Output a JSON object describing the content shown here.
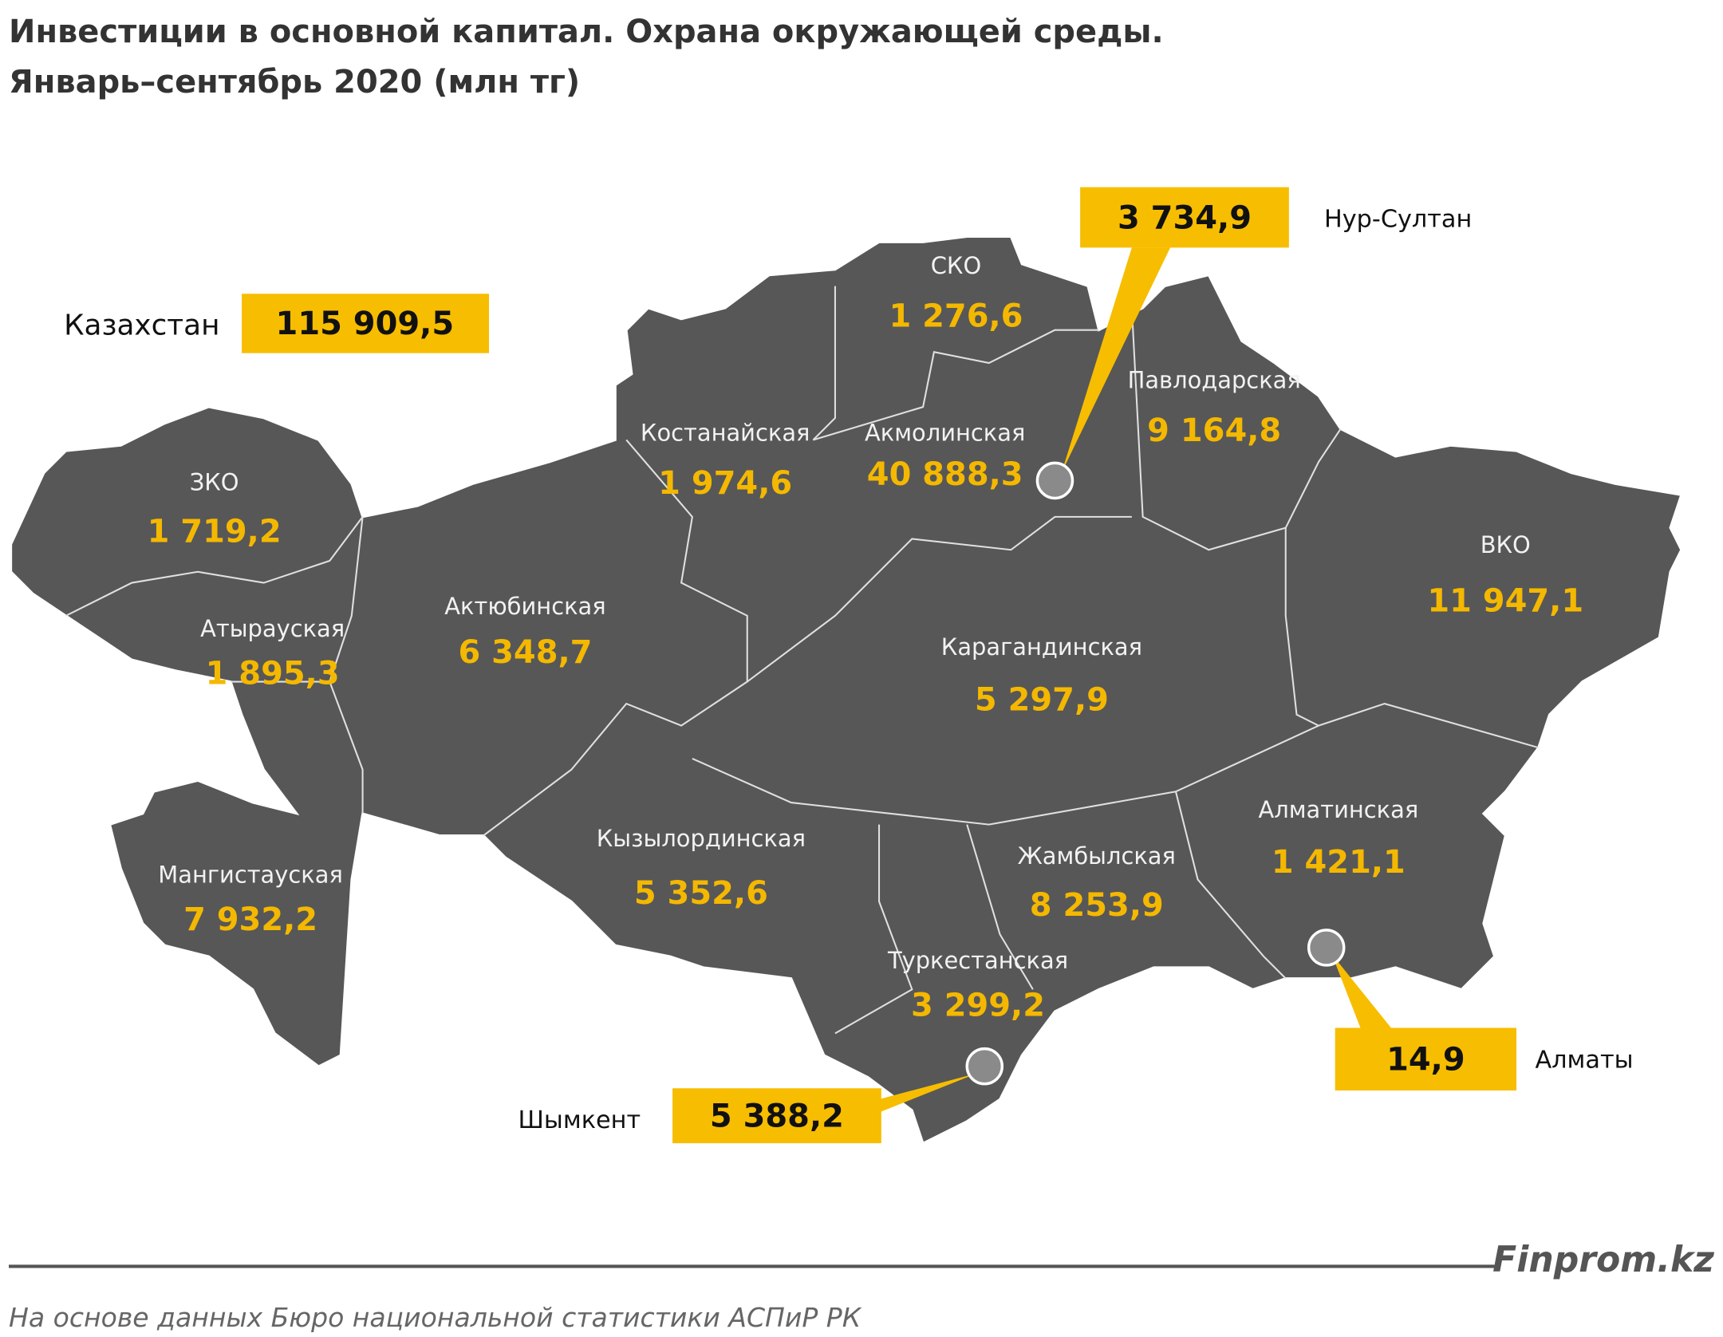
{
  "header": {
    "title_lines": [
      "Инвестиции в основной капитал. Охрана окружающей среды.",
      "Январь–сентябрь 2020  (млн тг)"
    ]
  },
  "total": {
    "label": "Казахстан",
    "value": "115 909,5"
  },
  "regions": [
    {
      "name": "ЗКО",
      "value": "1 719,2"
    },
    {
      "name": "Атырауская",
      "value": "1 895,3"
    },
    {
      "name": "Актюбинская",
      "value": "6 348,7"
    },
    {
      "name": "Костанайская",
      "value": "1 974,6"
    },
    {
      "name": "СКО",
      "value": "1 276,6"
    },
    {
      "name": "Акмолинская",
      "value": "40 888,3"
    },
    {
      "name": "Павлодарская",
      "value": "9 164,8"
    },
    {
      "name": "ВКО",
      "value": "11 947,1"
    },
    {
      "name": "Карагандинская",
      "value": "5 297,9"
    },
    {
      "name": "Мангистауская",
      "value": "7 932,2"
    },
    {
      "name": "Кызылординская",
      "value": "5 352,6"
    },
    {
      "name": "Жамбылская",
      "value": "8 253,9"
    },
    {
      "name": "Алматинская",
      "value": "1 421,1"
    },
    {
      "name": "Туркестанская",
      "value": "3 299,2"
    }
  ],
  "cities": [
    {
      "name": "Нур-Султан",
      "value": "3 734,9"
    },
    {
      "name": "Алматы",
      "value": "14,9"
    },
    {
      "name": "Шымкент",
      "value": "5 388,2"
    }
  ],
  "footer": {
    "brand": "Finprom.kz",
    "source": "На основе данных  Бюро национальной  статистики АСПиР РК"
  }
}
